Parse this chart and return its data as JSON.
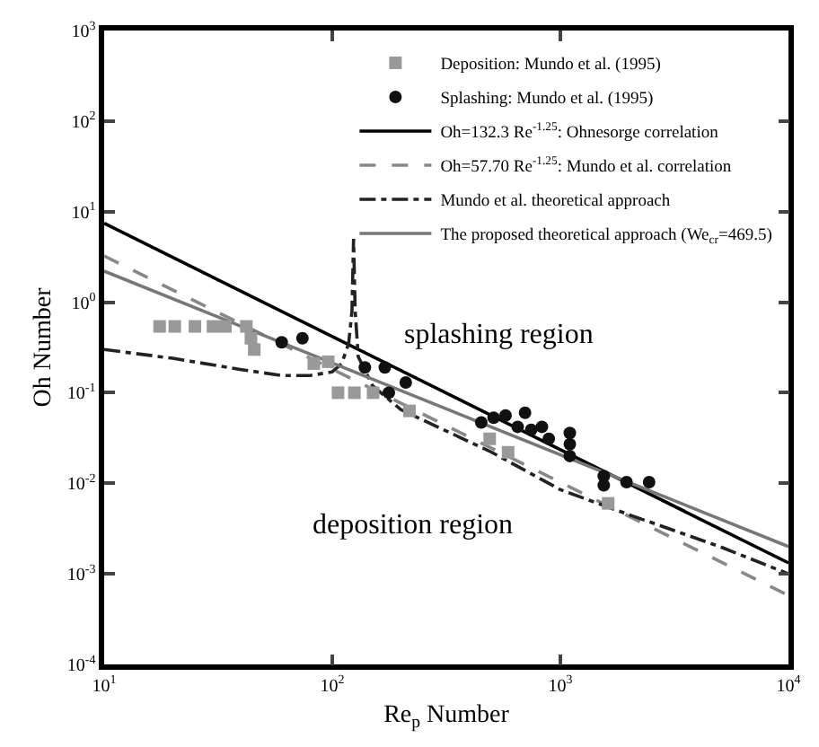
{
  "chart_data": {
    "type": "scatter",
    "xlabel": "Re$_{p}$ Number",
    "ylabel": "Oh Number",
    "log": "xy",
    "xlim": [
      10,
      10000
    ],
    "ylim": [
      0.0001,
      1000
    ],
    "xticks": [
      {
        "value": 10,
        "label": "10$^{1}$"
      },
      {
        "value": 100,
        "label": "10$^{2}$"
      },
      {
        "value": 1000,
        "label": "10$^{3}$"
      },
      {
        "value": 10000,
        "label": "10$^{4}$"
      }
    ],
    "yticks": [
      {
        "value": 0.0001,
        "label": "10$^{-4}$"
      },
      {
        "value": 0.001,
        "label": "10$^{-3}$"
      },
      {
        "value": 0.01,
        "label": "10$^{-2}$"
      },
      {
        "value": 0.1,
        "label": "10$^{-1}$"
      },
      {
        "value": 1,
        "label": "10$^{0}$"
      },
      {
        "value": 10,
        "label": "10$^{1}$"
      },
      {
        "value": 100,
        "label": "10$^{2}$"
      },
      {
        "value": 1000,
        "label": "10$^{3}$"
      }
    ],
    "grid": false,
    "legend": "top right",
    "annotations": [
      "splashing region",
      "deposition region"
    ],
    "series": [
      {
        "name": "Deposition: Mundo et al. (1995)",
        "marker": "square",
        "color": "#999999",
        "x": [
          17.5,
          20.4,
          25,
          30,
          34,
          42,
          44,
          45.5,
          83,
          96,
          106,
          125,
          151,
          218,
          490,
          590,
          1620
        ],
        "values": [
          0.54,
          0.54,
          0.54,
          0.54,
          0.54,
          0.54,
          0.4,
          0.3,
          0.21,
          0.22,
          0.1,
          0.1,
          0.1,
          0.063,
          0.031,
          0.022,
          0.006
        ]
      },
      {
        "name": "Splashing: Mundo et al. (1995)",
        "marker": "circle",
        "color": "#111111",
        "x": [
          60,
          74,
          139,
          170,
          177,
          210,
          450,
          510,
          575,
          700,
          650,
          745,
          830,
          890,
          1100,
          1100,
          1100,
          1550,
          1550,
          1950,
          2450
        ],
        "values": [
          0.36,
          0.4,
          0.19,
          0.19,
          0.1,
          0.13,
          0.047,
          0.053,
          0.056,
          0.06,
          0.042,
          0.039,
          0.042,
          0.031,
          0.036,
          0.027,
          0.02,
          0.012,
          0.0095,
          0.0103,
          0.0103
        ]
      },
      {
        "name": "Oh=132.3 Re$^{-1.25}$: Ohnesorge correlation",
        "type": "line",
        "marker": "none",
        "line_style": "solid",
        "color": "#000000",
        "x": [
          10,
          10000
        ],
        "values": [
          7.44,
          0.00132
        ]
      },
      {
        "name": "Oh=57.70 Re$^{-1.25}$: Mundo et al. correlation",
        "type": "line",
        "marker": "none",
        "line_style": "dashed",
        "color": "#888888",
        "x": [
          10,
          10000
        ],
        "values": [
          3.24,
          0.000577
        ]
      },
      {
        "name": "Mundo et al. theoretical approach",
        "type": "line",
        "marker": "none",
        "line_style": "dashdot",
        "color": "#222222",
        "x": [
          10,
          20,
          40,
          60,
          80,
          100,
          110,
          118,
          122,
          124,
          126,
          130,
          150,
          200,
          500,
          1000,
          2000,
          5000,
          10000
        ],
        "values": [
          0.3,
          0.24,
          0.18,
          0.155,
          0.155,
          0.17,
          0.21,
          0.35,
          0.8,
          5,
          0.8,
          0.25,
          0.12,
          0.065,
          0.022,
          0.0085,
          0.0045,
          0.002,
          0.001
        ]
      },
      {
        "name": "The proposed theoretical approach (We$_{cr}$=469.5)",
        "type": "line",
        "marker": "none",
        "line_style": "solid",
        "color": "#777777",
        "x": [
          10,
          10000
        ],
        "values": [
          2.2,
          0.002
        ]
      }
    ]
  }
}
